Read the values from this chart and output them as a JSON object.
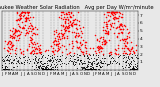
{
  "title": "Milwaukee Weather Solar Radiation   Avg per Day W/m²/minute",
  "title_fontsize": 3.8,
  "background_color": "#e8e8e8",
  "plot_bg_color": "#e8e8e8",
  "grid_color": "#888888",
  "ylim": [
    0,
    7.5
  ],
  "yticks": [
    1,
    2,
    3,
    4,
    5,
    6,
    7
  ],
  "ylabel_fontsize": 3.2,
  "xlabel_fontsize": 2.8,
  "red_dot_size": 2.2,
  "black_dot_size": 1.2,
  "seed": 42
}
